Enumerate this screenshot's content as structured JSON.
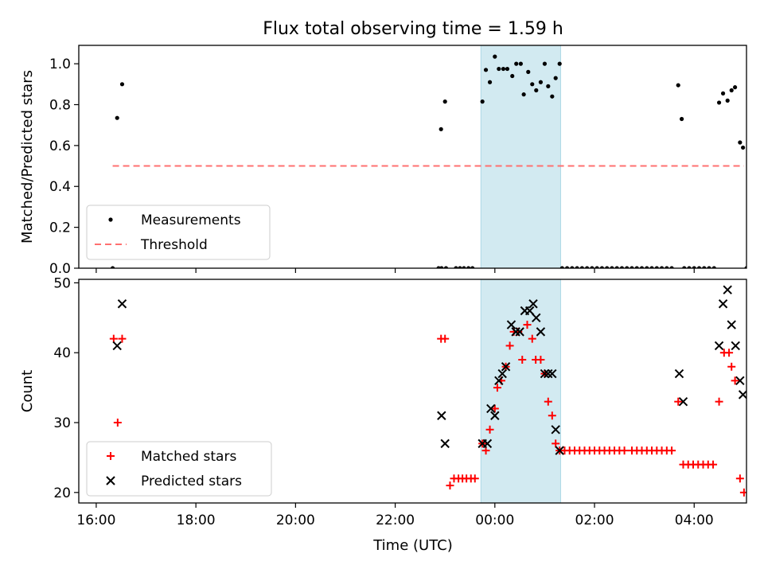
{
  "figure": {
    "title": "Flux total observing time = 1.59 h",
    "xlabel": "Time (UTC)",
    "xticks": [
      {
        "value": 16,
        "label": "16:00"
      },
      {
        "value": 18,
        "label": "18:00"
      },
      {
        "value": 20,
        "label": "20:00"
      },
      {
        "value": 22,
        "label": "22:00"
      },
      {
        "value": 24,
        "label": "00:00"
      },
      {
        "value": 26,
        "label": "02:00"
      },
      {
        "value": 28,
        "label": "04:00"
      }
    ],
    "xlim": [
      15.65,
      29.05
    ],
    "shade_span": {
      "start": 23.72,
      "end": 25.32,
      "color": "#add8e6"
    }
  },
  "chart_data": [
    {
      "type": "scatter",
      "ylabel": "Matched/Predicted stars",
      "ylim": [
        0,
        1.09
      ],
      "yticks": [
        {
          "value": 0.0,
          "label": "0.0"
        },
        {
          "value": 0.2,
          "label": "0.2"
        },
        {
          "value": 0.4,
          "label": "0.4"
        },
        {
          "value": 0.6,
          "label": "0.6"
        },
        {
          "value": 0.8,
          "label": "0.8"
        },
        {
          "value": 1.0,
          "label": "1.0"
        }
      ],
      "legend_position": "lower-left",
      "series": [
        {
          "name": "Measurements",
          "marker": "dot",
          "color": "#000000",
          "points": [
            [
              16.33,
              0.0
            ],
            [
              16.42,
              0.735
            ],
            [
              16.52,
              0.9
            ],
            [
              22.87,
              0.0
            ],
            [
              22.93,
              0.0
            ],
            [
              23.02,
              0.0
            ],
            [
              22.92,
              0.68
            ],
            [
              23.0,
              0.815
            ],
            [
              23.22,
              0.0
            ],
            [
              23.3,
              0.0
            ],
            [
              23.38,
              0.0
            ],
            [
              23.47,
              0.0
            ],
            [
              23.55,
              0.0
            ],
            [
              23.75,
              0.815
            ],
            [
              23.82,
              0.97
            ],
            [
              23.9,
              0.91
            ],
            [
              24.0,
              1.035
            ],
            [
              24.08,
              0.975
            ],
            [
              24.17,
              0.975
            ],
            [
              24.25,
              0.975
            ],
            [
              24.35,
              0.94
            ],
            [
              24.43,
              1.0
            ],
            [
              24.52,
              1.0
            ],
            [
              24.58,
              0.85
            ],
            [
              24.67,
              0.96
            ],
            [
              24.75,
              0.9
            ],
            [
              24.83,
              0.87
            ],
            [
              24.92,
              0.91
            ],
            [
              25.0,
              1.0
            ],
            [
              25.07,
              0.89
            ],
            [
              25.15,
              0.84
            ],
            [
              25.22,
              0.93
            ],
            [
              25.3,
              1.0
            ],
            [
              25.35,
              0.0
            ],
            [
              25.45,
              0.0
            ],
            [
              25.55,
              0.0
            ],
            [
              25.65,
              0.0
            ],
            [
              25.75,
              0.0
            ],
            [
              25.85,
              0.0
            ],
            [
              25.95,
              0.0
            ],
            [
              26.05,
              0.0
            ],
            [
              26.15,
              0.0
            ],
            [
              26.25,
              0.0
            ],
            [
              26.35,
              0.0
            ],
            [
              26.45,
              0.0
            ],
            [
              26.55,
              0.0
            ],
            [
              26.65,
              0.0
            ],
            [
              26.75,
              0.0
            ],
            [
              26.85,
              0.0
            ],
            [
              26.95,
              0.0
            ],
            [
              27.05,
              0.0
            ],
            [
              27.15,
              0.0
            ],
            [
              27.25,
              0.0
            ],
            [
              27.35,
              0.0
            ],
            [
              27.45,
              0.0
            ],
            [
              27.55,
              0.0
            ],
            [
              27.68,
              0.895
            ],
            [
              27.75,
              0.73
            ],
            [
              27.8,
              0.0
            ],
            [
              27.9,
              0.0
            ],
            [
              28.0,
              0.0
            ],
            [
              28.1,
              0.0
            ],
            [
              28.2,
              0.0
            ],
            [
              28.3,
              0.0
            ],
            [
              28.4,
              0.0
            ],
            [
              28.5,
              0.81
            ],
            [
              28.58,
              0.855
            ],
            [
              28.67,
              0.82
            ],
            [
              28.75,
              0.87
            ],
            [
              28.82,
              0.885
            ],
            [
              28.92,
              0.615
            ],
            [
              28.98,
              0.59
            ],
            [
              29.05,
              0.0
            ]
          ]
        },
        {
          "name": "Threshold",
          "marker": "dashed-line",
          "color": "#ff7070",
          "points": [
            [
              16.33,
              0.5
            ],
            [
              29.0,
              0.5
            ]
          ]
        }
      ]
    },
    {
      "type": "scatter",
      "ylabel": "Count",
      "ylim": [
        18.5,
        50.5
      ],
      "yticks": [
        {
          "value": 20,
          "label": "20"
        },
        {
          "value": 30,
          "label": "30"
        },
        {
          "value": 40,
          "label": "40"
        },
        {
          "value": 50,
          "label": "50"
        }
      ],
      "legend_position": "lower-left",
      "series": [
        {
          "name": "Matched stars",
          "marker": "plus",
          "color": "#ff0000",
          "points": [
            [
              16.35,
              42
            ],
            [
              16.43,
              30
            ],
            [
              16.52,
              42
            ],
            [
              22.92,
              42
            ],
            [
              23.0,
              42
            ],
            [
              23.1,
              21
            ],
            [
              23.18,
              22
            ],
            [
              23.27,
              22
            ],
            [
              23.35,
              22
            ],
            [
              23.43,
              22
            ],
            [
              23.52,
              22
            ],
            [
              23.6,
              22
            ],
            [
              23.75,
              27
            ],
            [
              23.82,
              26
            ],
            [
              23.9,
              29
            ],
            [
              24.0,
              32
            ],
            [
              24.05,
              35
            ],
            [
              24.13,
              36
            ],
            [
              24.22,
              38
            ],
            [
              24.3,
              41
            ],
            [
              24.38,
              43
            ],
            [
              24.47,
              43
            ],
            [
              24.55,
              39
            ],
            [
              24.65,
              44
            ],
            [
              24.75,
              42
            ],
            [
              24.82,
              39
            ],
            [
              24.92,
              39
            ],
            [
              25.0,
              37
            ],
            [
              25.07,
              33
            ],
            [
              25.15,
              31
            ],
            [
              25.22,
              27
            ],
            [
              25.3,
              26
            ],
            [
              25.4,
              26
            ],
            [
              25.5,
              26
            ],
            [
              25.6,
              26
            ],
            [
              25.7,
              26
            ],
            [
              25.8,
              26
            ],
            [
              25.9,
              26
            ],
            [
              26.0,
              26
            ],
            [
              26.1,
              26
            ],
            [
              26.2,
              26
            ],
            [
              26.3,
              26
            ],
            [
              26.4,
              26
            ],
            [
              26.5,
              26
            ],
            [
              26.6,
              26
            ],
            [
              26.75,
              26
            ],
            [
              26.85,
              26
            ],
            [
              26.95,
              26
            ],
            [
              27.05,
              26
            ],
            [
              27.15,
              26
            ],
            [
              27.25,
              26
            ],
            [
              27.35,
              26
            ],
            [
              27.45,
              26
            ],
            [
              27.55,
              26
            ],
            [
              27.68,
              33
            ],
            [
              27.78,
              24
            ],
            [
              27.88,
              24
            ],
            [
              27.98,
              24
            ],
            [
              28.08,
              24
            ],
            [
              28.18,
              24
            ],
            [
              28.28,
              24
            ],
            [
              28.38,
              24
            ],
            [
              28.5,
              33
            ],
            [
              28.6,
              40
            ],
            [
              28.7,
              40
            ],
            [
              28.75,
              38
            ],
            [
              28.82,
              36
            ],
            [
              28.92,
              22
            ],
            [
              29.0,
              20
            ]
          ]
        },
        {
          "name": "Predicted stars",
          "marker": "x",
          "color": "#000000",
          "points": [
            [
              16.42,
              41
            ],
            [
              16.52,
              47
            ],
            [
              22.93,
              31
            ],
            [
              23.0,
              27
            ],
            [
              23.75,
              27
            ],
            [
              23.85,
              27
            ],
            [
              23.92,
              32
            ],
            [
              24.0,
              31
            ],
            [
              24.08,
              36
            ],
            [
              24.15,
              37
            ],
            [
              24.22,
              38
            ],
            [
              24.33,
              44
            ],
            [
              24.42,
              43
            ],
            [
              24.5,
              43
            ],
            [
              24.6,
              46
            ],
            [
              24.7,
              46
            ],
            [
              24.77,
              47
            ],
            [
              24.83,
              45
            ],
            [
              24.92,
              43
            ],
            [
              25.0,
              37
            ],
            [
              25.07,
              37
            ],
            [
              25.15,
              37
            ],
            [
              25.22,
              29
            ],
            [
              25.3,
              26
            ],
            [
              27.7,
              37
            ],
            [
              27.78,
              33
            ],
            [
              28.5,
              41
            ],
            [
              28.58,
              47
            ],
            [
              28.67,
              49
            ],
            [
              28.75,
              44
            ],
            [
              28.83,
              41
            ],
            [
              28.92,
              36
            ],
            [
              28.98,
              34
            ]
          ]
        }
      ]
    }
  ]
}
